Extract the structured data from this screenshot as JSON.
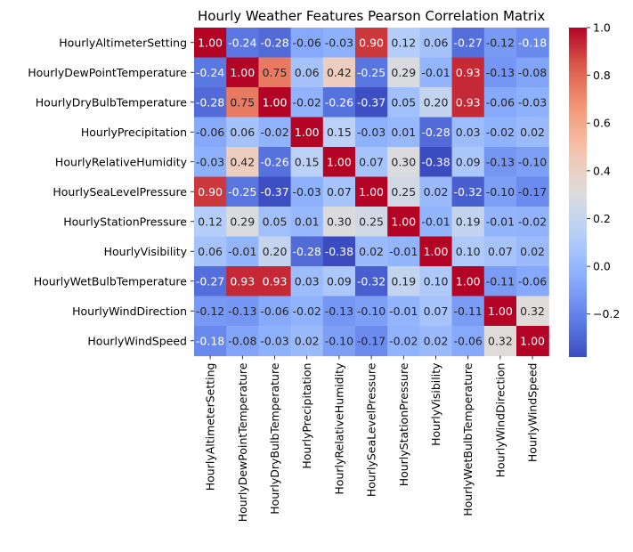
{
  "chart_data": {
    "type": "heatmap",
    "title": "Hourly Weather Features Pearson Correlation Matrix",
    "xlabel": "",
    "ylabel": "",
    "colormap": "coolwarm",
    "value_range": [
      -0.38,
      1.0
    ],
    "colorbar_ticks": [
      1.0,
      0.8,
      0.6,
      0.4,
      0.2,
      0.0,
      -0.2
    ],
    "colorbar_tick_labels": [
      "1.0",
      "0.8",
      "0.6",
      "0.4",
      "0.2",
      "0.0",
      "−0.2"
    ],
    "rows": [
      "HourlyAltimeterSetting",
      "HourlyDewPointTemperature",
      "HourlyDryBulbTemperature",
      "HourlyPrecipitation",
      "HourlyRelativeHumidity",
      "HourlySeaLevelPressure",
      "HourlyStationPressure",
      "HourlyVisibility",
      "HourlyWetBulbTemperature",
      "HourlyWindDirection",
      "HourlyWindSpeed"
    ],
    "columns": [
      "HourlyAltimeterSetting",
      "HourlyDewPointTemperature",
      "HourlyDryBulbTemperature",
      "HourlyPrecipitation",
      "HourlyRelativeHumidity",
      "HourlySeaLevelPressure",
      "HourlyStationPressure",
      "HourlyVisibility",
      "HourlyWetBulbTemperature",
      "HourlyWindDirection",
      "HourlyWindSpeed"
    ],
    "values": [
      [
        1.0,
        -0.24,
        -0.28,
        -0.06,
        -0.03,
        0.9,
        0.12,
        0.06,
        -0.27,
        -0.12,
        -0.18
      ],
      [
        -0.24,
        1.0,
        0.75,
        0.06,
        0.42,
        -0.25,
        0.29,
        -0.01,
        0.93,
        -0.13,
        -0.08
      ],
      [
        -0.28,
        0.75,
        1.0,
        -0.02,
        -0.26,
        -0.37,
        0.05,
        0.2,
        0.93,
        -0.06,
        -0.03
      ],
      [
        -0.06,
        0.06,
        -0.02,
        1.0,
        0.15,
        -0.03,
        0.01,
        -0.28,
        0.03,
        -0.02,
        0.02
      ],
      [
        -0.03,
        0.42,
        -0.26,
        0.15,
        1.0,
        0.07,
        0.3,
        -0.38,
        0.09,
        -0.13,
        -0.1
      ],
      [
        0.9,
        -0.25,
        -0.37,
        -0.03,
        0.07,
        1.0,
        0.25,
        0.02,
        -0.32,
        -0.1,
        -0.17
      ],
      [
        0.12,
        0.29,
        0.05,
        0.01,
        0.3,
        0.25,
        1.0,
        -0.01,
        0.19,
        -0.01,
        -0.02
      ],
      [
        0.06,
        -0.01,
        0.2,
        -0.28,
        -0.38,
        0.02,
        -0.01,
        1.0,
        0.1,
        0.07,
        0.02
      ],
      [
        -0.27,
        0.93,
        0.93,
        0.03,
        0.09,
        -0.32,
        0.19,
        0.1,
        1.0,
        -0.11,
        -0.06
      ],
      [
        -0.12,
        -0.13,
        -0.06,
        -0.02,
        -0.13,
        -0.1,
        -0.01,
        0.07,
        -0.11,
        1.0,
        0.32
      ],
      [
        -0.18,
        -0.08,
        -0.03,
        0.02,
        -0.1,
        -0.17,
        -0.02,
        0.02,
        -0.06,
        0.32,
        1.0
      ]
    ],
    "value_labels": [
      [
        "1.00",
        "-0.24",
        "-0.28",
        "-0.06",
        "-0.03",
        "0.90",
        "0.12",
        "0.06",
        "-0.27",
        "-0.12",
        "-0.18"
      ],
      [
        "-0.24",
        "1.00",
        "0.75",
        "0.06",
        "0.42",
        "-0.25",
        "0.29",
        "-0.01",
        "0.93",
        "-0.13",
        "-0.08"
      ],
      [
        "-0.28",
        "0.75",
        "1.00",
        "-0.02",
        "-0.26",
        "-0.37",
        "0.05",
        "0.20",
        "0.93",
        "-0.06",
        "-0.03"
      ],
      [
        "-0.06",
        "0.06",
        "-0.02",
        "1.00",
        "0.15",
        "-0.03",
        "0.01",
        "-0.28",
        "0.03",
        "-0.02",
        "0.02"
      ],
      [
        "-0.03",
        "0.42",
        "-0.26",
        "0.15",
        "1.00",
        "0.07",
        "0.30",
        "-0.38",
        "0.09",
        "-0.13",
        "-0.10"
      ],
      [
        "0.90",
        "-0.25",
        "-0.37",
        "-0.03",
        "0.07",
        "1.00",
        "0.25",
        "0.02",
        "-0.32",
        "-0.10",
        "-0.17"
      ],
      [
        "0.12",
        "0.29",
        "0.05",
        "0.01",
        "0.30",
        "0.25",
        "1.00",
        "-0.01",
        "0.19",
        "-0.01",
        "-0.02"
      ],
      [
        "0.06",
        "-0.01",
        "0.20",
        "-0.28",
        "-0.38",
        "0.02",
        "-0.01",
        "1.00",
        "0.10",
        "0.07",
        "0.02"
      ],
      [
        "-0.27",
        "0.93",
        "0.93",
        "0.03",
        "0.09",
        "-0.32",
        "0.19",
        "0.10",
        "1.00",
        "-0.11",
        "-0.06"
      ],
      [
        "-0.12",
        "-0.13",
        "-0.06",
        "-0.02",
        "-0.13",
        "-0.10",
        "-0.01",
        "0.07",
        "-0.11",
        "1.00",
        "0.32"
      ],
      [
        "-0.18",
        "-0.08",
        "-0.03",
        "0.02",
        "-0.10",
        "-0.17",
        "-0.02",
        "0.02",
        "-0.06",
        "0.32",
        "1.00"
      ]
    ],
    "grid": false,
    "legend": "colorbar-right"
  }
}
